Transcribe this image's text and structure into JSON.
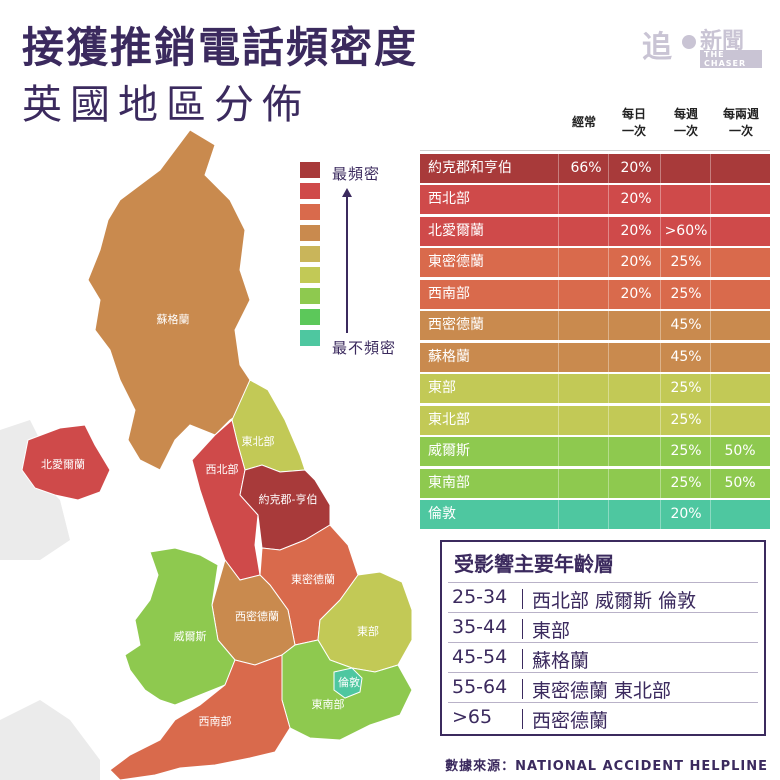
{
  "title": "接獲推銷電話頻密度",
  "subtitle": "英國地區分佈",
  "logo": {
    "mark": "追",
    "name": "新聞",
    "tagline": "THE CHASER"
  },
  "legend": {
    "top_label": "最頻密",
    "bottom_label": "最不頻密",
    "colors": [
      "#a83a3a",
      "#cf4a4a",
      "#d96a4c",
      "#c98a4e",
      "#c9b55a",
      "#c2c956",
      "#8ec94f",
      "#5cc85a",
      "#4ec7a0"
    ]
  },
  "map": {
    "labels": {
      "scotland": "蘇格蘭",
      "northern_ireland": "北愛爾蘭",
      "north_east": "東北部",
      "north_west": "西北部",
      "yorkshire": "約克郡-亨伯",
      "east_midlands": "東密德蘭",
      "west_midlands": "西密德蘭",
      "wales": "威爾斯",
      "east": "東部",
      "london": "倫敦",
      "south_east": "東南部",
      "south_west": "西南部"
    },
    "colors": {
      "scotland": "#c98a4e",
      "northern_ireland": "#cf4a4a",
      "north_east": "#c2c956",
      "north_west": "#cf4a4a",
      "yorkshire": "#a83a3a",
      "east_midlands": "#d96a4c",
      "west_midlands": "#c98a4e",
      "wales": "#8ec94f",
      "east": "#c2c956",
      "london": "#4ec7a0",
      "south_east": "#8ec94f",
      "south_west": "#d96a4c",
      "land_other": "#ebebeb"
    }
  },
  "table": {
    "headers": [
      "經常",
      "每日\n一次",
      "每週\n一次",
      "每兩週\n一次"
    ],
    "rows": [
      {
        "region": "約克郡和亨伯",
        "often": "66%",
        "daily": "20%",
        "weekly": "",
        "biweekly": "",
        "color": "#a83a3a"
      },
      {
        "region": "西北部",
        "often": "",
        "daily": "20%",
        "weekly": "",
        "biweekly": "",
        "color": "#cf4a4a"
      },
      {
        "region": "北愛爾蘭",
        "often": "",
        "daily": "20%",
        "weekly": ">60%",
        "biweekly": "",
        "color": "#cf4a4a"
      },
      {
        "region": "東密德蘭",
        "often": "",
        "daily": "20%",
        "weekly": "25%",
        "biweekly": "",
        "color": "#d96a4c"
      },
      {
        "region": "西南部",
        "often": "",
        "daily": "20%",
        "weekly": "25%",
        "biweekly": "",
        "color": "#d96a4c"
      },
      {
        "region": "西密德蘭",
        "often": "",
        "daily": "",
        "weekly": "45%",
        "biweekly": "",
        "color": "#c98a4e"
      },
      {
        "region": "蘇格蘭",
        "often": "",
        "daily": "",
        "weekly": "45%",
        "biweekly": "",
        "color": "#c98a4e"
      },
      {
        "region": "東部",
        "often": "",
        "daily": "",
        "weekly": "25%",
        "biweekly": "",
        "color": "#c2c956"
      },
      {
        "region": "東北部",
        "often": "",
        "daily": "",
        "weekly": "25%",
        "biweekly": "",
        "color": "#c2c956"
      },
      {
        "region": "威爾斯",
        "often": "",
        "daily": "",
        "weekly": "25%",
        "biweekly": "50%",
        "color": "#8ec94f"
      },
      {
        "region": "東南部",
        "often": "",
        "daily": "",
        "weekly": "25%",
        "biweekly": "50%",
        "color": "#8ec94f"
      },
      {
        "region": "倫敦",
        "often": "",
        "daily": "",
        "weekly": "20%",
        "biweekly": "",
        "color": "#4ec7a0"
      }
    ]
  },
  "age_box": {
    "title": "受影響主要年齡層",
    "rows": [
      {
        "age": "25-34",
        "regions": "西北部  威爾斯  倫敦"
      },
      {
        "age": "35-44",
        "regions": "東部"
      },
      {
        "age": "45-54",
        "regions": "蘇格蘭"
      },
      {
        "age": "55-64",
        "regions": "東密德蘭  東北部"
      },
      {
        "age": ">65",
        "regions": "西密德蘭"
      }
    ]
  },
  "source": "數據來源：NATIONAL ACCIDENT HELPLINE"
}
